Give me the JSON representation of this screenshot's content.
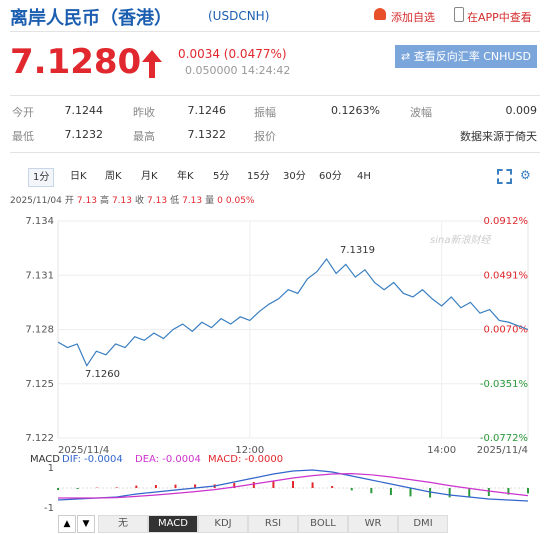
{
  "header": {
    "title": "离岸人民币（香港）",
    "code": "(USDCNH)",
    "add_watch": "添加自选",
    "open_app": "在APP中查看"
  },
  "quote": {
    "price": "7.1280",
    "change": "0.0034 (0.0477%)",
    "time": "0.050000 14:24:42",
    "reverse_button": "⇄ 查看反向汇率 CNHUSD"
  },
  "stats": {
    "rows": [
      [
        {
          "label": "今开",
          "value": "7.1244"
        },
        {
          "label": "昨收",
          "value": "7.1246"
        },
        {
          "label": "振幅",
          "value": "0.1263%"
        },
        {
          "label": "波幅",
          "value": "0.009"
        }
      ],
      [
        {
          "label": "最低",
          "value": "7.1232"
        },
        {
          "label": "最高",
          "value": "7.1322"
        },
        {
          "label": "报价"
        },
        {
          "value": "数据来源于倚天"
        }
      ]
    ]
  },
  "period_tabs": [
    "1分",
    "日K",
    "周K",
    "月K",
    "年K",
    "5分",
    "15分",
    "30分",
    "60分",
    "4H"
  ],
  "info": {
    "date": "2025/11/04",
    "items": [
      {
        "label": "开",
        "value": "7.13"
      },
      {
        "label": "高",
        "value": "7.13"
      },
      {
        "label": "收",
        "value": "7.13"
      },
      {
        "label": "低",
        "value": "7.13"
      },
      {
        "label": "量",
        "value": "0"
      }
    ],
    "change": "0.05%"
  },
  "watermark": "sina新浪财经",
  "indicator_tabs": [
    "无",
    "MACD",
    "KDJ",
    "RSI",
    "BOLL",
    "WR",
    "DMI"
  ],
  "chart_data": [
    {
      "type": "line",
      "color": "#3a7fc1",
      "grid": true,
      "xlim": [
        0,
        49
      ],
      "xticks": [
        {
          "value": 0,
          "label": "2025/11/4"
        },
        {
          "value": 20,
          "label": "12:00"
        },
        {
          "value": 40,
          "label": "14:00"
        },
        {
          "value": 49,
          "label": "2025/11/4"
        }
      ],
      "ylim": [
        7.122,
        7.134
      ],
      "yticks": [
        7.122,
        7.125,
        7.128,
        7.131,
        7.134
      ],
      "y2lim": [
        -0.0772,
        0.0912
      ],
      "y2ticks": [
        {
          "value": -0.0772,
          "label": "-0.0772%"
        },
        {
          "value": -0.0351,
          "label": "-0.0351%"
        },
        {
          "value": 0.007,
          "label": "0.0070%"
        },
        {
          "value": 0.0491,
          "label": "0.0491%"
        },
        {
          "value": 0.0912,
          "label": "0.0912%"
        }
      ],
      "up_color": "#e0282e",
      "down_color": "#2a9a3a",
      "annotations": [
        "7.1319",
        "7.1260"
      ],
      "values": [
        7.1273,
        7.127,
        7.1272,
        7.126,
        7.1268,
        7.1266,
        7.1272,
        7.127,
        7.1276,
        7.1274,
        7.1278,
        7.1275,
        7.128,
        7.1283,
        7.1279,
        7.1284,
        7.1281,
        7.1286,
        7.1283,
        7.1287,
        7.1285,
        7.129,
        7.1294,
        7.1297,
        7.1302,
        7.13,
        7.1308,
        7.1312,
        7.1319,
        7.1311,
        7.1316,
        7.1309,
        7.1313,
        7.1306,
        7.1302,
        7.1306,
        7.13,
        7.1298,
        7.1302,
        7.1297,
        7.1293,
        7.1298,
        7.1292,
        7.1295,
        7.1289,
        7.1291,
        7.1285,
        7.1284,
        7.1282,
        7.128
      ]
    },
    {
      "type": "macd",
      "title": "MACD",
      "ylim": [
        -1,
        1
      ],
      "yticks": [
        -1,
        1
      ],
      "up_color": "#e0282e",
      "down_color": "#2a9a3a",
      "series": [
        {
          "name": "DIF: -0.0004",
          "color": "#3366cc",
          "values": [
            -0.6,
            -0.55,
            -0.5,
            -0.45,
            -0.3,
            -0.2,
            -0.1,
            0.0,
            0.1,
            0.3,
            0.5,
            0.7,
            0.85,
            0.9,
            0.8,
            0.6,
            0.4,
            0.2,
            0.0,
            -0.2,
            -0.35,
            -0.45,
            -0.55,
            -0.6,
            -0.65
          ]
        },
        {
          "name": "DEA: -0.0004",
          "color": "#cc33cc",
          "values": [
            -0.5,
            -0.5,
            -0.5,
            -0.48,
            -0.42,
            -0.35,
            -0.27,
            -0.18,
            -0.08,
            0.05,
            0.2,
            0.35,
            0.5,
            0.62,
            0.7,
            0.72,
            0.66,
            0.55,
            0.42,
            0.28,
            0.12,
            -0.02,
            -0.15,
            -0.27,
            -0.38
          ]
        },
        {
          "name": "MACD: -0.0000",
          "color": "#e0282e",
          "values": [
            -0.1,
            -0.05,
            0.02,
            0.03,
            0.12,
            0.15,
            0.17,
            0.18,
            0.18,
            0.25,
            0.3,
            0.35,
            0.35,
            0.28,
            0.1,
            -0.12,
            -0.26,
            -0.35,
            -0.42,
            -0.48,
            -0.47,
            -0.43,
            -0.4,
            -0.33,
            -0.27
          ]
        }
      ]
    }
  ]
}
